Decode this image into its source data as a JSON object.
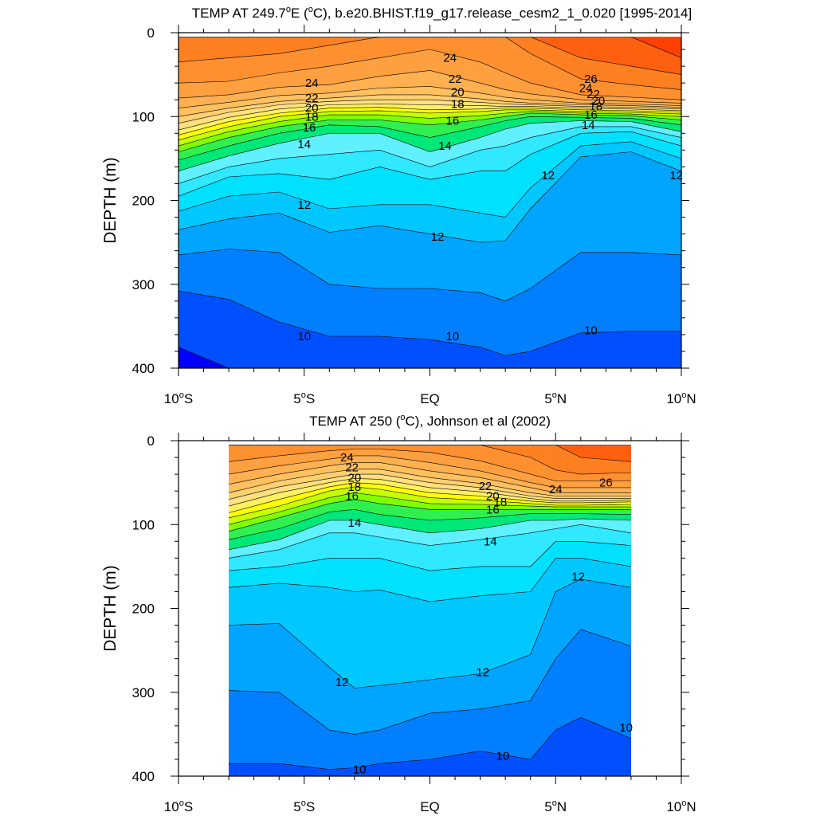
{
  "colors": {
    "levels_palette": [
      "#0000ff",
      "#0050ff",
      "#0080ff",
      "#00a5ff",
      "#00c8ff",
      "#00e0ff",
      "#30e8ff",
      "#60f0ff",
      "#00e878",
      "#30f050",
      "#80ff00",
      "#c8ff00",
      "#ffff00",
      "#fff060",
      "#ffe080",
      "#ffd070",
      "#ffc060",
      "#ffb050",
      "#ffa040",
      "#ff9030",
      "#ff8020",
      "#ff6010",
      "#ff4000",
      "#ff0000"
    ],
    "line": "#000000",
    "background": "#ffffff"
  },
  "chart_data": [
    {
      "type": "contour",
      "title": "TEMP AT 249.7",
      "title_sup": "o",
      "title_rest": "E (",
      "title_unit_sup": "o",
      "title_tail": "C), b.e20.BHIST.f19_g17.release_cesm2_1_0.020 [1995-2014]",
      "ylabel": "DEPTH (m)",
      "xlim": [
        -10,
        10
      ],
      "ylim": [
        0,
        400
      ],
      "y_inverted": true,
      "x_ticks": [
        {
          "value": -10,
          "label": "10",
          "sup": "o",
          "suffix": "S"
        },
        {
          "value": -5,
          "label": "5",
          "sup": "o",
          "suffix": "S"
        },
        {
          "value": 0,
          "label": "EQ",
          "sup": "",
          "suffix": ""
        },
        {
          "value": 5,
          "label": "5",
          "sup": "o",
          "suffix": "N"
        },
        {
          "value": 10,
          "label": "10",
          "sup": "o",
          "suffix": "N"
        }
      ],
      "y_ticks": [
        0,
        100,
        200,
        300,
        400
      ],
      "data_extent_x": [
        -10,
        10
      ],
      "data_extent_y": [
        5,
        400
      ],
      "levels": [
        9,
        10,
        11,
        12,
        12.5,
        13,
        13.5,
        14,
        15,
        16,
        17,
        18,
        19,
        20,
        21,
        22,
        23,
        24,
        25,
        26,
        27,
        28
      ],
      "x": [
        -10,
        -8,
        -6,
        -4,
        -2,
        0,
        2,
        3,
        4,
        6,
        8,
        10
      ],
      "isotherm_depths": {
        "9": [
          375,
          400,
          420,
          430,
          440,
          440,
          440,
          440,
          440,
          440,
          440,
          440
        ],
        "10": [
          308,
          318,
          345,
          362,
          362,
          366,
          375,
          385,
          380,
          358,
          356,
          356
        ],
        "11": [
          265,
          258,
          262,
          300,
          305,
          305,
          310,
          320,
          305,
          262,
          262,
          265
        ],
        "12": [
          235,
          222,
          215,
          238,
          230,
          240,
          250,
          248,
          210,
          148,
          142,
          165
        ],
        "12.5": [
          213,
          195,
          190,
          210,
          205,
          205,
          215,
          220,
          185,
          135,
          130,
          150
        ],
        "13": [
          195,
          172,
          168,
          175,
          160,
          175,
          165,
          165,
          145,
          120,
          118,
          135
        ],
        "13.5": [
          180,
          160,
          150,
          145,
          140,
          160,
          140,
          135,
          125,
          112,
          112,
          125
        ],
        "14": [
          165,
          147,
          132,
          120,
          120,
          142,
          125,
          115,
          108,
          105,
          106,
          118
        ],
        "15": [
          152,
          135,
          120,
          110,
          112,
          125,
          112,
          105,
          100,
          101,
          102,
          110
        ],
        "16": [
          142,
          125,
          112,
          104,
          104,
          110,
          104,
          100,
          96,
          98,
          99,
          104
        ],
        "17": [
          135,
          118,
          106,
          98,
          98,
          102,
          99,
          96,
          94,
          96,
          97,
          100
        ],
        "18": [
          128,
          112,
          100,
          94,
          93,
          96,
          94,
          92,
          92,
          94,
          95,
          97
        ],
        "19": [
          122,
          106,
          96,
          90,
          89,
          92,
          91,
          90,
          90,
          92,
          93,
          95
        ],
        "20": [
          116,
          101,
          91,
          86,
          85,
          86,
          87,
          88,
          88,
          90,
          91,
          93
        ],
        "21": [
          108,
          95,
          86,
          82,
          80,
          80,
          83,
          85,
          86,
          88,
          89,
          91
        ],
        "22": [
          100,
          90,
          82,
          78,
          74,
          74,
          79,
          82,
          84,
          86,
          87,
          89
        ],
        "23": [
          90,
          83,
          75,
          72,
          66,
          64,
          72,
          77,
          80,
          84,
          85,
          87
        ],
        "24": [
          78,
          74,
          65,
          62,
          52,
          45,
          60,
          68,
          73,
          80,
          82,
          84
        ],
        "25": [
          60,
          58,
          48,
          40,
          30,
          20,
          35,
          48,
          60,
          74,
          77,
          80
        ],
        "26": [
          35,
          30,
          25,
          15,
          5,
          5,
          5,
          5,
          25,
          55,
          62,
          68
        ],
        "27": [
          5,
          5,
          5,
          5,
          5,
          5,
          5,
          5,
          5,
          30,
          40,
          50
        ],
        "28": [
          5,
          5,
          5,
          5,
          5,
          5,
          5,
          5,
          5,
          5,
          5,
          30
        ]
      },
      "contour_labels": [
        {
          "x": -4.7,
          "y": 60,
          "text": "24"
        },
        {
          "x": -4.7,
          "y": 78,
          "text": "22"
        },
        {
          "x": -4.7,
          "y": 90,
          "text": "20"
        },
        {
          "x": -4.7,
          "y": 100,
          "text": "18"
        },
        {
          "x": -4.8,
          "y": 113,
          "text": "16"
        },
        {
          "x": -5.0,
          "y": 133,
          "text": "14"
        },
        {
          "x": -5.0,
          "y": 205,
          "text": "12"
        },
        {
          "x": -5.0,
          "y": 362,
          "text": "10"
        },
        {
          "x": 0.8,
          "y": 30,
          "text": "24"
        },
        {
          "x": 1.0,
          "y": 55,
          "text": "22"
        },
        {
          "x": 1.1,
          "y": 71,
          "text": "20"
        },
        {
          "x": 1.1,
          "y": 85,
          "text": "18"
        },
        {
          "x": 0.9,
          "y": 105,
          "text": "16"
        },
        {
          "x": 0.6,
          "y": 135,
          "text": "14"
        },
        {
          "x": 0.3,
          "y": 243,
          "text": "12"
        },
        {
          "x": 0.9,
          "y": 362,
          "text": "10"
        },
        {
          "x": 6.4,
          "y": 55,
          "text": "26"
        },
        {
          "x": 6.2,
          "y": 66,
          "text": "24"
        },
        {
          "x": 6.5,
          "y": 73,
          "text": "22"
        },
        {
          "x": 6.7,
          "y": 81,
          "text": "20"
        },
        {
          "x": 6.6,
          "y": 88,
          "text": "18"
        },
        {
          "x": 6.4,
          "y": 98,
          "text": "16"
        },
        {
          "x": 6.3,
          "y": 110,
          "text": "14"
        },
        {
          "x": 4.7,
          "y": 170,
          "text": "12"
        },
        {
          "x": 9.8,
          "y": 170,
          "text": "12"
        },
        {
          "x": 6.4,
          "y": 355,
          "text": "10"
        }
      ]
    },
    {
      "type": "contour",
      "title": "TEMP AT 250 (",
      "title_sup": "o",
      "title_rest": "C), Johnson et al (2002)",
      "title_unit_sup": "",
      "title_tail": "",
      "ylabel": "DEPTH (m)",
      "xlim": [
        -10,
        10
      ],
      "ylim": [
        0,
        400
      ],
      "y_inverted": true,
      "x_ticks": [
        {
          "value": -10,
          "label": "10",
          "sup": "o",
          "suffix": "S"
        },
        {
          "value": -5,
          "label": "5",
          "sup": "o",
          "suffix": "S"
        },
        {
          "value": 0,
          "label": "EQ",
          "sup": "",
          "suffix": ""
        },
        {
          "value": 5,
          "label": "5",
          "sup": "o",
          "suffix": "N"
        },
        {
          "value": 10,
          "label": "10",
          "sup": "o",
          "suffix": "N"
        }
      ],
      "y_ticks": [
        0,
        100,
        200,
        300,
        400
      ],
      "data_extent_x": [
        -8,
        8
      ],
      "data_extent_y": [
        5,
        400
      ],
      "levels": [
        9,
        10,
        11,
        12,
        12.5,
        13,
        13.5,
        14,
        15,
        16,
        17,
        18,
        19,
        20,
        21,
        22,
        23,
        24,
        25,
        26,
        27,
        28
      ],
      "x": [
        -8,
        -6,
        -4,
        -3,
        -2,
        0,
        2,
        4,
        5,
        6,
        8
      ],
      "isotherm_depths": {
        "9": [
          420,
          420,
          420,
          420,
          420,
          420,
          420,
          420,
          420,
          420,
          420
        ],
        "10": [
          385,
          385,
          392,
          390,
          385,
          380,
          370,
          380,
          345,
          330,
          355
        ],
        "11": [
          298,
          300,
          345,
          350,
          345,
          325,
          320,
          310,
          260,
          225,
          245
        ],
        "12": [
          220,
          218,
          270,
          295,
          292,
          285,
          278,
          255,
          180,
          165,
          175
        ],
        "12.5": [
          175,
          170,
          175,
          180,
          178,
          192,
          185,
          180,
          140,
          140,
          150
        ],
        "13": [
          155,
          150,
          140,
          140,
          140,
          155,
          150,
          150,
          120,
          120,
          125
        ],
        "13.5": [
          140,
          130,
          110,
          110,
          115,
          125,
          118,
          110,
          105,
          100,
          110
        ],
        "14": [
          130,
          118,
          95,
          95,
          100,
          110,
          105,
          95,
          95,
          93,
          95
        ],
        "15": [
          118,
          105,
          85,
          82,
          88,
          95,
          92,
          87,
          87,
          87,
          88
        ],
        "16": [
          108,
          92,
          75,
          70,
          75,
          82,
          82,
          82,
          82,
          82,
          82
        ],
        "17": [
          100,
          85,
          68,
          62,
          66,
          75,
          76,
          78,
          79,
          79,
          79
        ],
        "18": [
          92,
          78,
          60,
          55,
          58,
          68,
          71,
          75,
          77,
          77,
          76
        ],
        "19": [
          86,
          70,
          55,
          50,
          52,
          62,
          66,
          72,
          74,
          74,
          73
        ],
        "20": [
          78,
          62,
          50,
          45,
          46,
          56,
          61,
          69,
          72,
          72,
          71
        ],
        "21": [
          70,
          55,
          45,
          40,
          40,
          50,
          56,
          66,
          69,
          69,
          69
        ],
        "22": [
          62,
          48,
          38,
          34,
          34,
          44,
          51,
          62,
          66,
          66,
          66
        ],
        "23": [
          52,
          40,
          30,
          26,
          26,
          36,
          44,
          56,
          62,
          62,
          62
        ],
        "24": [
          40,
          30,
          22,
          18,
          18,
          26,
          36,
          50,
          56,
          56,
          56
        ],
        "25": [
          25,
          18,
          12,
          10,
          10,
          14,
          24,
          40,
          48,
          48,
          48
        ],
        "26": [
          5,
          5,
          5,
          5,
          5,
          5,
          5,
          20,
          35,
          40,
          38
        ],
        "27": [
          5,
          5,
          5,
          5,
          5,
          5,
          5,
          5,
          5,
          20,
          25
        ],
        "28": [
          5,
          5,
          5,
          5,
          5,
          5,
          5,
          5,
          5,
          5,
          5
        ]
      },
      "contour_labels": [
        {
          "x": -3.3,
          "y": 20,
          "text": "24"
        },
        {
          "x": -3.1,
          "y": 32,
          "text": "22"
        },
        {
          "x": -3.0,
          "y": 44,
          "text": "20"
        },
        {
          "x": -3.0,
          "y": 55,
          "text": "18"
        },
        {
          "x": -3.1,
          "y": 66,
          "text": "16"
        },
        {
          "x": -3.0,
          "y": 98,
          "text": "14"
        },
        {
          "x": -3.5,
          "y": 288,
          "text": "12"
        },
        {
          "x": -2.8,
          "y": 392,
          "text": "10"
        },
        {
          "x": 2.2,
          "y": 54,
          "text": "22"
        },
        {
          "x": 2.5,
          "y": 66,
          "text": "20"
        },
        {
          "x": 2.8,
          "y": 73,
          "text": "18"
        },
        {
          "x": 2.5,
          "y": 82,
          "text": "16"
        },
        {
          "x": 2.4,
          "y": 120,
          "text": "14"
        },
        {
          "x": 2.1,
          "y": 276,
          "text": "12"
        },
        {
          "x": 2.9,
          "y": 376,
          "text": "10"
        },
        {
          "x": 5.0,
          "y": 58,
          "text": "24"
        },
        {
          "x": 7.0,
          "y": 50,
          "text": "26"
        },
        {
          "x": 5.9,
          "y": 162,
          "text": "12"
        },
        {
          "x": 7.8,
          "y": 342,
          "text": "10"
        }
      ]
    }
  ]
}
